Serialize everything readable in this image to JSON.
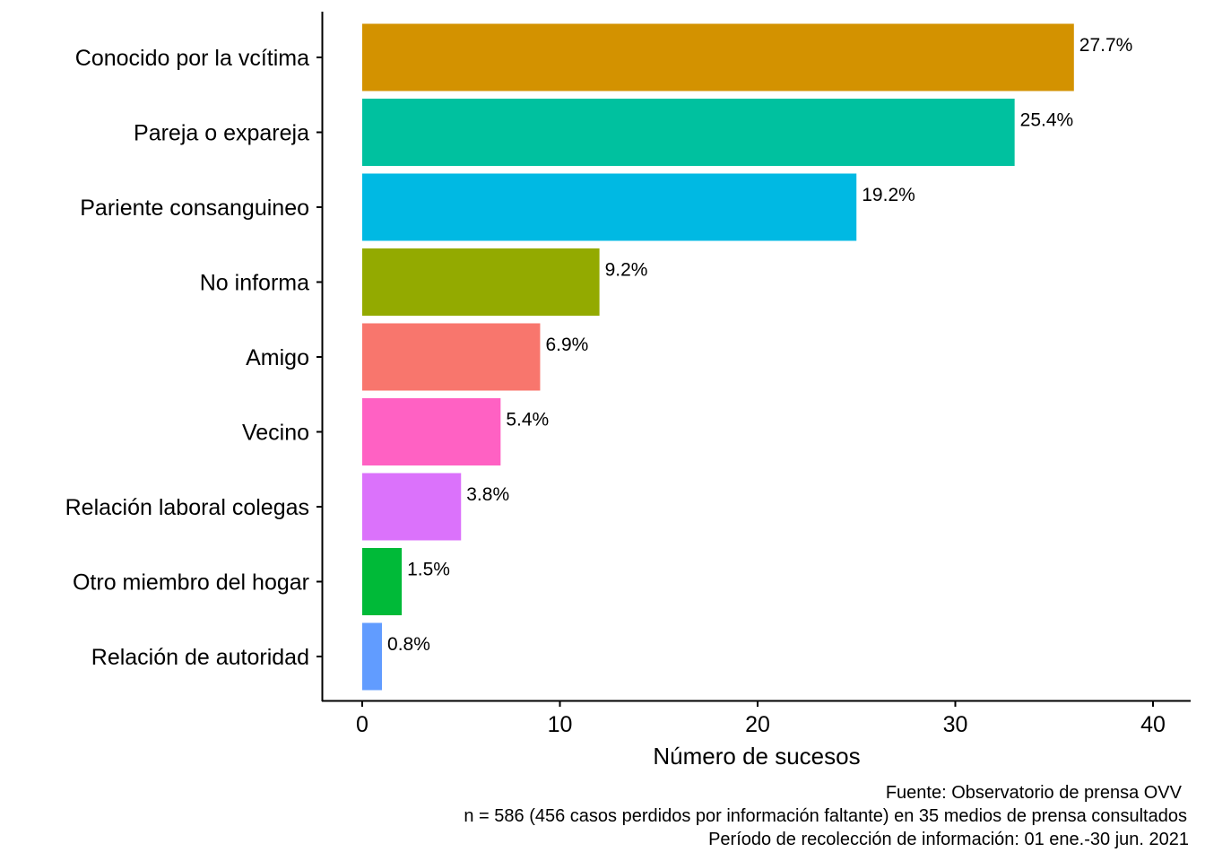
{
  "chart_data": {
    "type": "bar",
    "orientation": "horizontal",
    "categories": [
      "Conocido por la vcítima",
      "Pareja o expareja",
      "Pariente consanguineo",
      "No informa",
      "Amigo",
      "Vecino",
      "Relación laboral colegas",
      "Otro miembro del hogar",
      "Relación de autoridad"
    ],
    "values": [
      36,
      33,
      25,
      12,
      9,
      7,
      5,
      2,
      1
    ],
    "labels": [
      "27.7%",
      "25.4%",
      "19.2%",
      "9.2%",
      "6.9%",
      "5.4%",
      "3.8%",
      "1.5%",
      "0.8%"
    ],
    "colors": [
      "#D39200",
      "#00C19F",
      "#00B9E3",
      "#93AA00",
      "#F8766D",
      "#FF61C3",
      "#DB72FB",
      "#00BA38",
      "#619CFF"
    ],
    "xlabel": "Número de sucesos",
    "ylabel": "",
    "xlim": [
      -2,
      42
    ],
    "xticks": [
      0,
      10,
      20,
      30,
      40
    ],
    "xtick_labels": [
      "0",
      "10",
      "20",
      "30",
      "40"
    ],
    "grid": false,
    "legend": "none",
    "caption": [
      "Fuente: Observatorio de prensa OVV",
      "n = 586 (456 casos perdidos por información faltante) en 35 medios de prensa consultados",
      "Período de recolección de información: 01 ene.-30 jun. 2021"
    ]
  }
}
